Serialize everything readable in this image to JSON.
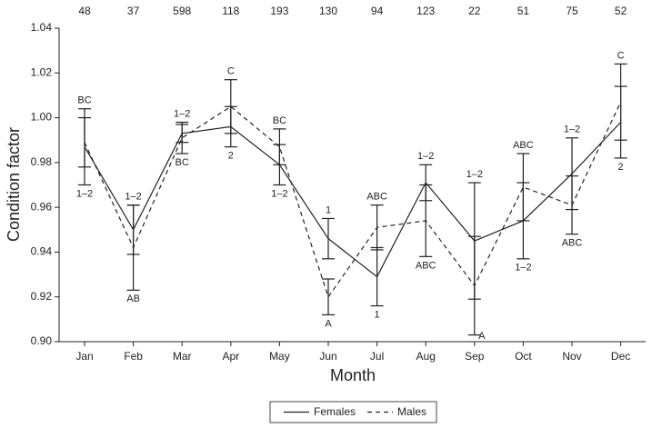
{
  "chart_data": {
    "type": "line",
    "x_label": "Month",
    "y_label": "Condition factor",
    "categories": [
      "Jan",
      "Feb",
      "Mar",
      "Apr",
      "May",
      "Jun",
      "Jul",
      "Aug",
      "Sep",
      "Oct",
      "Nov",
      "Dec"
    ],
    "sample_sizes": [
      48,
      37,
      598,
      118,
      193,
      130,
      94,
      123,
      22,
      51,
      75,
      52
    ],
    "series": [
      {
        "name": "Females",
        "color": "#222222",
        "line_style": "solid",
        "values": [
          0.987,
          0.95,
          0.993,
          0.996,
          0.979,
          0.946,
          0.929,
          0.971,
          0.945,
          0.954,
          0.975,
          0.998
        ],
        "errors": [
          0.017,
          0.011,
          0.004,
          0.009,
          0.009,
          0.009,
          0.013,
          0.008,
          0.026,
          0.017,
          0.016,
          0.016
        ]
      },
      {
        "name": "Males",
        "color": "#222222",
        "line_style": "dashed",
        "values": [
          0.989,
          0.942,
          0.991,
          1.005,
          0.987,
          0.92,
          0.951,
          0.954,
          0.925,
          0.969,
          0.961,
          1.007
        ],
        "errors": [
          0.011,
          0.019,
          0.007,
          0.012,
          0.008,
          0.008,
          0.01,
          0.016,
          0.022,
          0.015,
          0.013,
          0.017
        ]
      }
    ],
    "annotations_above": [
      "BC",
      "1–2",
      "1–2",
      "C",
      "BC",
      "1",
      "ABC",
      "1–2",
      "1–2",
      "ABC",
      "1–2",
      "C"
    ],
    "annotations_below": [
      "1–2",
      "AB",
      "BC",
      "2",
      "1–2",
      "A",
      "1",
      "ABC",
      "A",
      "1–2",
      "ABC",
      "2"
    ],
    "ylim": [
      0.9,
      1.04
    ],
    "yticks": [
      {
        "value": 0.9,
        "label": "0.90"
      },
      0.92,
      0.94,
      0.96,
      0.98,
      {
        "value": 1.0,
        "label": "1.00"
      },
      1.02,
      1.04
    ],
    "legend": "bottom"
  }
}
